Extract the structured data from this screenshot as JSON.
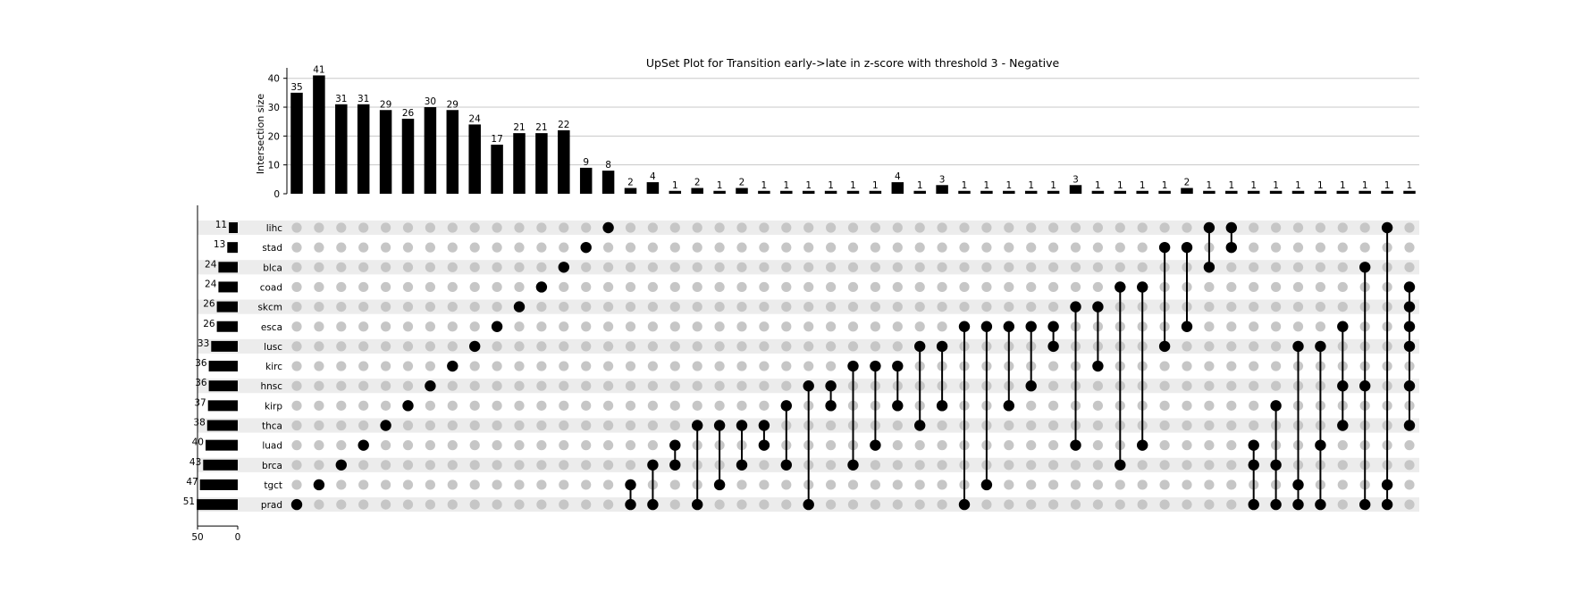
{
  "chart_data": {
    "type": "upset",
    "title": "UpSet Plot for Transition early->late in z-score with threshold 3 - Negative",
    "intersection_axis": {
      "label": "Intersection size",
      "ylim": [
        0,
        43
      ],
      "ticks": [
        0,
        10,
        20,
        30,
        40
      ],
      "grid": true
    },
    "set_size_axis": {
      "ticks": [
        50,
        0
      ]
    },
    "sets": [
      {
        "name": "lihc",
        "size": 11
      },
      {
        "name": "stad",
        "size": 13
      },
      {
        "name": "blca",
        "size": 24
      },
      {
        "name": "coad",
        "size": 24
      },
      {
        "name": "skcm",
        "size": 26
      },
      {
        "name": "esca",
        "size": 26
      },
      {
        "name": "lusc",
        "size": 33
      },
      {
        "name": "kirc",
        "size": 36
      },
      {
        "name": "hnsc",
        "size": 36
      },
      {
        "name": "kirp",
        "size": 37
      },
      {
        "name": "thca",
        "size": 38
      },
      {
        "name": "luad",
        "size": 40
      },
      {
        "name": "brca",
        "size": 43
      },
      {
        "name": "tgct",
        "size": 47
      },
      {
        "name": "prad",
        "size": 51
      }
    ],
    "intersections": [
      {
        "sets": [
          "prad"
        ],
        "size": 35
      },
      {
        "sets": [
          "tgct"
        ],
        "size": 41
      },
      {
        "sets": [
          "brca"
        ],
        "size": 31
      },
      {
        "sets": [
          "luad"
        ],
        "size": 31
      },
      {
        "sets": [
          "thca"
        ],
        "size": 29
      },
      {
        "sets": [
          "kirp"
        ],
        "size": 26
      },
      {
        "sets": [
          "hnsc"
        ],
        "size": 30
      },
      {
        "sets": [
          "kirc"
        ],
        "size": 29
      },
      {
        "sets": [
          "lusc"
        ],
        "size": 24
      },
      {
        "sets": [
          "esca"
        ],
        "size": 17
      },
      {
        "sets": [
          "skcm"
        ],
        "size": 21
      },
      {
        "sets": [
          "coad"
        ],
        "size": 21
      },
      {
        "sets": [
          "blca"
        ],
        "size": 22
      },
      {
        "sets": [
          "stad"
        ],
        "size": 9
      },
      {
        "sets": [
          "lihc"
        ],
        "size": 8
      },
      {
        "sets": [
          "tgct",
          "prad"
        ],
        "size": 2
      },
      {
        "sets": [
          "brca",
          "prad"
        ],
        "size": 4
      },
      {
        "sets": [
          "luad",
          "brca"
        ],
        "size": 1
      },
      {
        "sets": [
          "thca",
          "prad"
        ],
        "size": 2
      },
      {
        "sets": [
          "thca",
          "tgct"
        ],
        "size": 1
      },
      {
        "sets": [
          "thca",
          "brca"
        ],
        "size": 2
      },
      {
        "sets": [
          "thca",
          "luad"
        ],
        "size": 1
      },
      {
        "sets": [
          "kirp",
          "brca"
        ],
        "size": 1
      },
      {
        "sets": [
          "hnsc",
          "prad"
        ],
        "size": 1
      },
      {
        "sets": [
          "hnsc",
          "kirp"
        ],
        "size": 1
      },
      {
        "sets": [
          "kirc",
          "brca"
        ],
        "size": 1
      },
      {
        "sets": [
          "kirc",
          "luad"
        ],
        "size": 1
      },
      {
        "sets": [
          "kirc",
          "kirp"
        ],
        "size": 4
      },
      {
        "sets": [
          "lusc",
          "thca"
        ],
        "size": 1
      },
      {
        "sets": [
          "lusc",
          "kirp"
        ],
        "size": 3
      },
      {
        "sets": [
          "esca",
          "prad"
        ],
        "size": 1
      },
      {
        "sets": [
          "esca",
          "tgct"
        ],
        "size": 1
      },
      {
        "sets": [
          "esca",
          "kirp"
        ],
        "size": 1
      },
      {
        "sets": [
          "esca",
          "hnsc"
        ],
        "size": 1
      },
      {
        "sets": [
          "esca",
          "lusc"
        ],
        "size": 1
      },
      {
        "sets": [
          "skcm",
          "luad"
        ],
        "size": 3
      },
      {
        "sets": [
          "skcm",
          "kirc"
        ],
        "size": 1
      },
      {
        "sets": [
          "coad",
          "brca"
        ],
        "size": 1
      },
      {
        "sets": [
          "coad",
          "luad"
        ],
        "size": 1
      },
      {
        "sets": [
          "stad",
          "lusc"
        ],
        "size": 1
      },
      {
        "sets": [
          "stad",
          "esca"
        ],
        "size": 2
      },
      {
        "sets": [
          "lihc",
          "blca"
        ],
        "size": 1
      },
      {
        "sets": [
          "lihc",
          "stad"
        ],
        "size": 1
      },
      {
        "sets": [
          "luad",
          "brca",
          "prad"
        ],
        "size": 1
      },
      {
        "sets": [
          "kirp",
          "brca",
          "prad"
        ],
        "size": 1
      },
      {
        "sets": [
          "lusc",
          "tgct",
          "prad"
        ],
        "size": 1
      },
      {
        "sets": [
          "lusc",
          "luad",
          "prad"
        ],
        "size": 1
      },
      {
        "sets": [
          "esca",
          "hnsc",
          "thca"
        ],
        "size": 1
      },
      {
        "sets": [
          "blca",
          "hnsc",
          "prad"
        ],
        "size": 1
      },
      {
        "sets": [
          "lihc",
          "tgct",
          "prad"
        ],
        "size": 1
      },
      {
        "sets": [
          "coad",
          "skcm",
          "esca",
          "lusc",
          "hnsc",
          "thca"
        ],
        "size": 1
      }
    ]
  }
}
